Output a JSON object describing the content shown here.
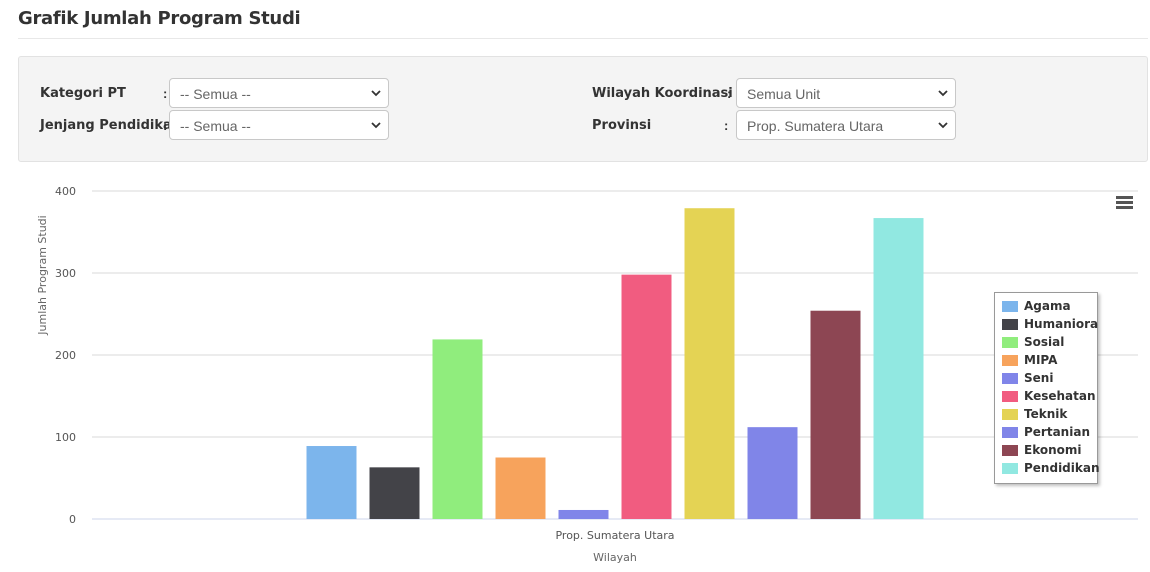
{
  "page": {
    "title": "Grafik Jumlah Program Studi"
  },
  "filters": {
    "kategori_pt": {
      "label": "Kategori PT",
      "colon": ":",
      "value": "-- Semua --"
    },
    "jenjang": {
      "label": "Jenjang Pendidikan",
      "colon": ":",
      "value": "-- Semua --"
    },
    "wilayah_koordinasi": {
      "label": "Wilayah Koordinasi",
      "colon": ":",
      "value": "Semua Unit"
    },
    "provinsi": {
      "label": "Provinsi",
      "colon": ":",
      "value": "Prop. Sumatera Utara"
    }
  },
  "icons": {
    "chart_menu": "hamburger-menu-icon",
    "select_chevron": "chevron-down-icon"
  },
  "chart_data": {
    "type": "bar",
    "title": "",
    "xlabel": "Wilayah",
    "ylabel": "Jumlah Program Studi",
    "categories": [
      "Prop. Sumatera Utara"
    ],
    "ylim": [
      0,
      400
    ],
    "yticks": [
      0,
      100,
      200,
      300,
      400
    ],
    "grid": true,
    "legend_position": "right",
    "series": [
      {
        "name": "Agama",
        "color": "#7cb5ec",
        "values": [
          89
        ]
      },
      {
        "name": "Humaniora",
        "color": "#434348",
        "values": [
          63
        ]
      },
      {
        "name": "Sosial",
        "color": "#90ed7d",
        "values": [
          219
        ]
      },
      {
        "name": "MIPA",
        "color": "#f7a35c",
        "values": [
          75
        ]
      },
      {
        "name": "Seni",
        "color": "#8085e9",
        "values": [
          11
        ]
      },
      {
        "name": "Kesehatan",
        "color": "#f15c80",
        "values": [
          298
        ]
      },
      {
        "name": "Teknik",
        "color": "#e4d354",
        "values": [
          379
        ]
      },
      {
        "name": "Pertanian",
        "color": "#8085e8",
        "values": [
          112
        ]
      },
      {
        "name": "Ekonomi",
        "color": "#8d4653",
        "values": [
          254
        ]
      },
      {
        "name": "Pendidikan",
        "color": "#91e8e1",
        "values": [
          367
        ]
      }
    ]
  }
}
